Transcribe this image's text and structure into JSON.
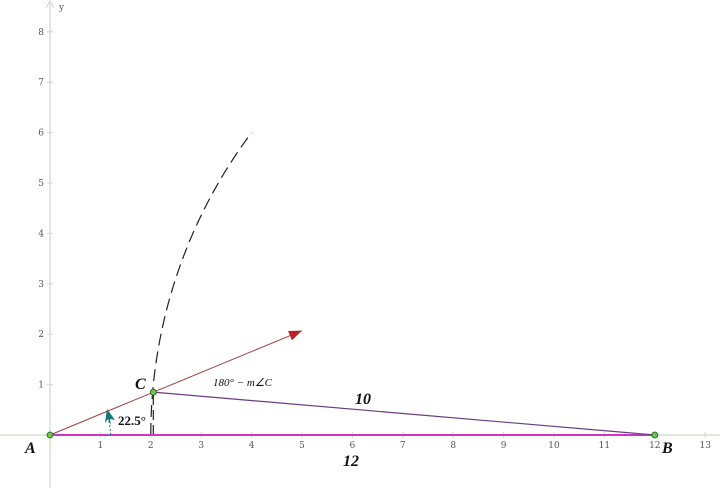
{
  "axes": {
    "x_label": "",
    "y_label": "y",
    "x_ticks": [
      1,
      2,
      3,
      4,
      5,
      6,
      7,
      8,
      9,
      10,
      11,
      12,
      13
    ],
    "y_ticks": [
      1,
      2,
      3,
      4,
      5,
      6,
      7,
      8
    ],
    "color": "#c8dcc8"
  },
  "points": {
    "A": {
      "label": "A",
      "x": 0,
      "y": 0
    },
    "B": {
      "label": "B",
      "x": 12,
      "y": 0
    },
    "C": {
      "label": "C",
      "x": 2.05,
      "y": 0.85
    }
  },
  "ray_end": {
    "x": 5.0,
    "y": 2.07
  },
  "arc": {
    "center": "B",
    "radius": 10,
    "from_y": 0,
    "to_y": 6
  },
  "labels": {
    "side_AB": "12",
    "side_BC": "10",
    "angle_A": "22.5°",
    "angle_C_expr": "180° − m∠C"
  },
  "colors": {
    "AB": "#cc33cc",
    "BC": "#6a3a80",
    "ray": "#a04040",
    "arrow": "#c02020",
    "point": "#66cc44",
    "angle_marker": "#117777"
  }
}
